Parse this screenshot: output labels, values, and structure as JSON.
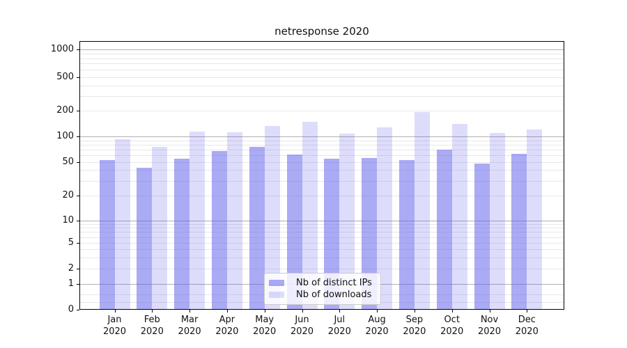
{
  "title": "netresponse 2020",
  "chart_data": {
    "type": "bar",
    "title": "netresponse 2020",
    "categories": [
      "Jan 2020",
      "Feb 2020",
      "Mar 2020",
      "Apr 2020",
      "May 2020",
      "Jun 2020",
      "Jul 2020",
      "Aug 2020",
      "Sep 2020",
      "Oct 2020",
      "Nov 2020",
      "Dec 2020"
    ],
    "series": [
      {
        "name": "Nb of distinct IPs",
        "color": "rgba(85,85,235,0.5)",
        "values": [
          53,
          43,
          55,
          67,
          75,
          61,
          55,
          56,
          53,
          70,
          48,
          62
        ]
      },
      {
        "name": "Nb of downloads",
        "color": "rgba(85,85,235,0.2)",
        "values": [
          92,
          76,
          114,
          112,
          132,
          147,
          108,
          128,
          192,
          140,
          109,
          120
        ]
      }
    ],
    "xlabel": "",
    "ylabel": "",
    "yscale": "symlog",
    "yticks": [
      0,
      1,
      2,
      5,
      10,
      20,
      50,
      100,
      200,
      500,
      1000
    ],
    "ylim": [
      0,
      1250
    ],
    "grid": true,
    "legend_position": "bottom-center-inside"
  },
  "colors": {
    "bar_distinct_ips": "rgba(85,85,235,0.5)",
    "bar_downloads": "rgba(85,85,235,0.2)",
    "grid_major": "#b0b0b0",
    "grid_minor": "#e8e8e8",
    "axis": "#000000"
  }
}
